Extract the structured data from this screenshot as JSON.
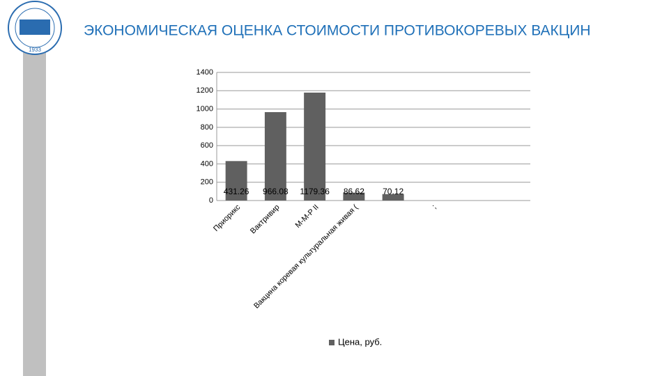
{
  "logo_year": "1933",
  "chart_data": {
    "type": "bar",
    "title": "ЭКОНОМИЧЕСКАЯ ОЦЕНКА СТОИМОСТИ ПРОТИВОКОРЕВЫХ ВАКЦИН",
    "categories": [
      "Приорикс",
      "Вактривир",
      "M-M-P II",
      "Вакцина коревая культуральная живая (",
      null,
      ";",
      null,
      null
    ],
    "series": [
      {
        "name": "Цена, руб.",
        "color": "#606060",
        "values": [
          431.26,
          966.08,
          1179.36,
          86.62,
          70.12,
          null,
          null,
          null
        ]
      }
    ],
    "ylim": [
      0,
      1400
    ],
    "yticks": [
      0,
      200,
      400,
      600,
      800,
      1000,
      1200,
      1400
    ],
    "grid": true,
    "legend": "bottom",
    "data_labels": true
  }
}
